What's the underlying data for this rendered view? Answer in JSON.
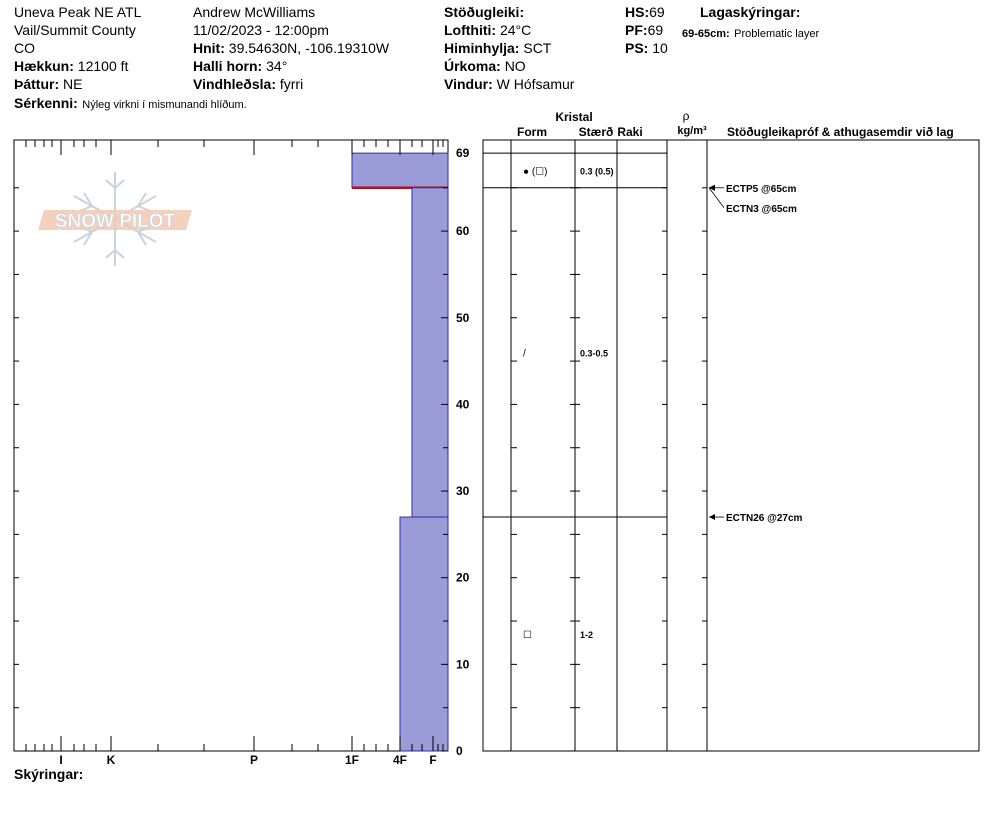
{
  "site": {
    "location": "Uneva Peak NE ATL",
    "county": "Vail/Summit County",
    "state": "CO",
    "elevation_label": "Hækkun:",
    "elevation": "12100 ft",
    "aspect_label": "Þáttur:",
    "aspect": "NE",
    "features_label": "Sérkenni:",
    "features": "Nýleg virkni í mismunandi hlíðum."
  },
  "observer": {
    "name": "Andrew McWilliams",
    "datetime": "11/02/2023 - 12:00pm",
    "coords_label": "Hnit:",
    "coords": "39.54630N, -106.19310W",
    "slope_label": "Halli horn:",
    "slope": "34°",
    "wind_loading_label": "Vindhleðsla:",
    "wind_loading": "fyrri"
  },
  "conditions": {
    "stability_label": "Stöðugleiki:",
    "stability": "",
    "air_temp_label": "Lofthiti:",
    "air_temp": "24°C",
    "sky_label": "Himinhylja:",
    "sky": "SCT",
    "precip_label": "Úrkoma:",
    "precip": "NO",
    "wind_label": "Vindur:",
    "wind": "W Hófsamur"
  },
  "depths": {
    "hs_label": "HS:",
    "hs": "69",
    "pf_label": "PF:",
    "pf": "69",
    "ps_label": "PS:",
    "ps": "10"
  },
  "legend": {
    "title": "Lagaskýringar:",
    "range": "69-65cm:",
    "desc": "Problematic layer"
  },
  "logo_text": "SNOW PILOT",
  "notes_label": "Skýringar:",
  "columns": {
    "crystal": "Kristal",
    "form": "Form",
    "size": "Stærð",
    "moisture": "Raki",
    "rho": "ρ",
    "density_unit": "kg/m³",
    "tests": "Stöðugleikapróf & athugasemdir við lag"
  },
  "chart_data": {
    "type": "bar",
    "y_axis": {
      "min": 0,
      "max": 69,
      "top_label": "69",
      "ticks": [
        0,
        10,
        20,
        30,
        40,
        50,
        60
      ]
    },
    "hardness_scale": [
      "I",
      "K",
      "P",
      "1F",
      "4F",
      "F"
    ],
    "layers": [
      {
        "top": 69,
        "bottom": 65,
        "hardness": "1F",
        "problematic": true
      },
      {
        "top": 65,
        "bottom": 27,
        "hardness": "4F+"
      },
      {
        "top": 27,
        "bottom": 0,
        "hardness": "4F"
      }
    ],
    "crystals": [
      {
        "depth": 67,
        "form": "● (☐)",
        "size": "0.3 (0.5)"
      },
      {
        "depth": 46,
        "form": "/",
        "size": "0.3-0.5"
      },
      {
        "depth": 13.5,
        "form": "☐",
        "size": "1-2"
      }
    ],
    "tests": [
      {
        "depth": 65,
        "label": "ECTP5 @65cm"
      },
      {
        "depth": 65,
        "label": "ECTN3 @65cm"
      },
      {
        "depth": 27,
        "label": "ECTN26 @27cm"
      }
    ]
  }
}
